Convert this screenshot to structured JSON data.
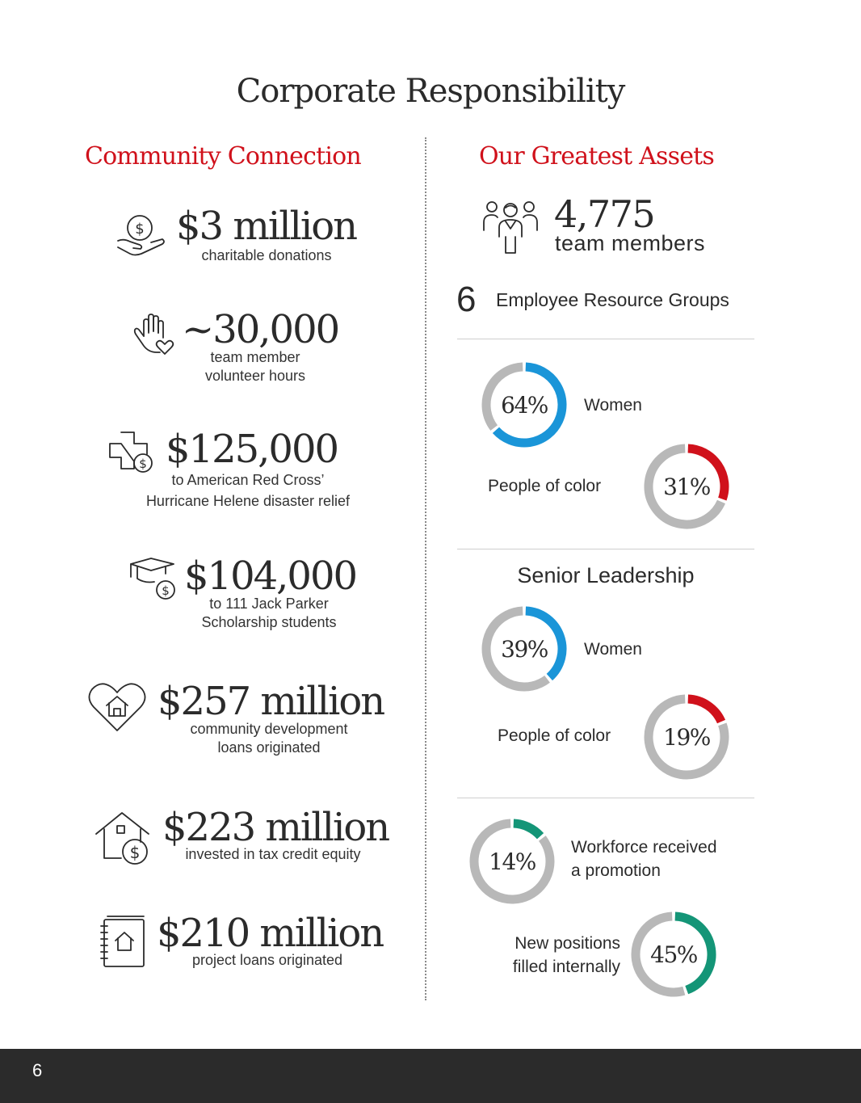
{
  "title": "Corporate Responsibility",
  "left": {
    "heading": "Community Connection",
    "stats": [
      {
        "value": "$3 million",
        "caption": [
          "charitable donations"
        ],
        "icon": "hand-coin-icon"
      },
      {
        "value": "~30,000",
        "caption": [
          "team member",
          "volunteer hours"
        ],
        "icon": "hand-heart-icon"
      },
      {
        "value": "$125,000",
        "caption": [
          "to American Red Cross’",
          "Hurricane Helene disaster relief"
        ],
        "icon": "medical-cross-dollar-icon"
      },
      {
        "value": "$104,000",
        "caption": [
          "to 111 Jack Parker",
          "Scholarship students"
        ],
        "icon": "graduation-cap-dollar-icon"
      },
      {
        "value": "$257 million",
        "caption": [
          "community development",
          "loans originated"
        ],
        "icon": "heart-house-icon"
      },
      {
        "value": "$223 million",
        "caption": [
          "invested in tax credit equity"
        ],
        "icon": "house-dollar-icon"
      },
      {
        "value": "$210 million",
        "caption": [
          "project loans originated"
        ],
        "icon": "notebook-house-icon"
      }
    ]
  },
  "right": {
    "heading": "Our Greatest Assets",
    "team_count": "4,775",
    "team_label": "team members",
    "erg_count": "6",
    "erg_label": "Employee Resource Groups",
    "senior_heading": "Senior Leadership",
    "donuts": [
      {
        "pct": 64,
        "display": "64%",
        "label": [
          "Women"
        ],
        "color": "#1a95d8"
      },
      {
        "pct": 31,
        "display": "31%",
        "label": [
          "People of color"
        ],
        "color": "#d0111b"
      },
      {
        "pct": 39,
        "display": "39%",
        "label": [
          "Women"
        ],
        "color": "#1a95d8"
      },
      {
        "pct": 19,
        "display": "19%",
        "label": [
          "People of color"
        ],
        "color": "#d0111b"
      },
      {
        "pct": 14,
        "display": "14%",
        "label": [
          "Workforce received",
          "a promotion"
        ],
        "color": "#149577"
      },
      {
        "pct": 45,
        "display": "45%",
        "label": [
          "New positions",
          "filled internally"
        ],
        "color": "#149577"
      }
    ],
    "track_color": "#b8b8b8"
  },
  "page_number": "6"
}
